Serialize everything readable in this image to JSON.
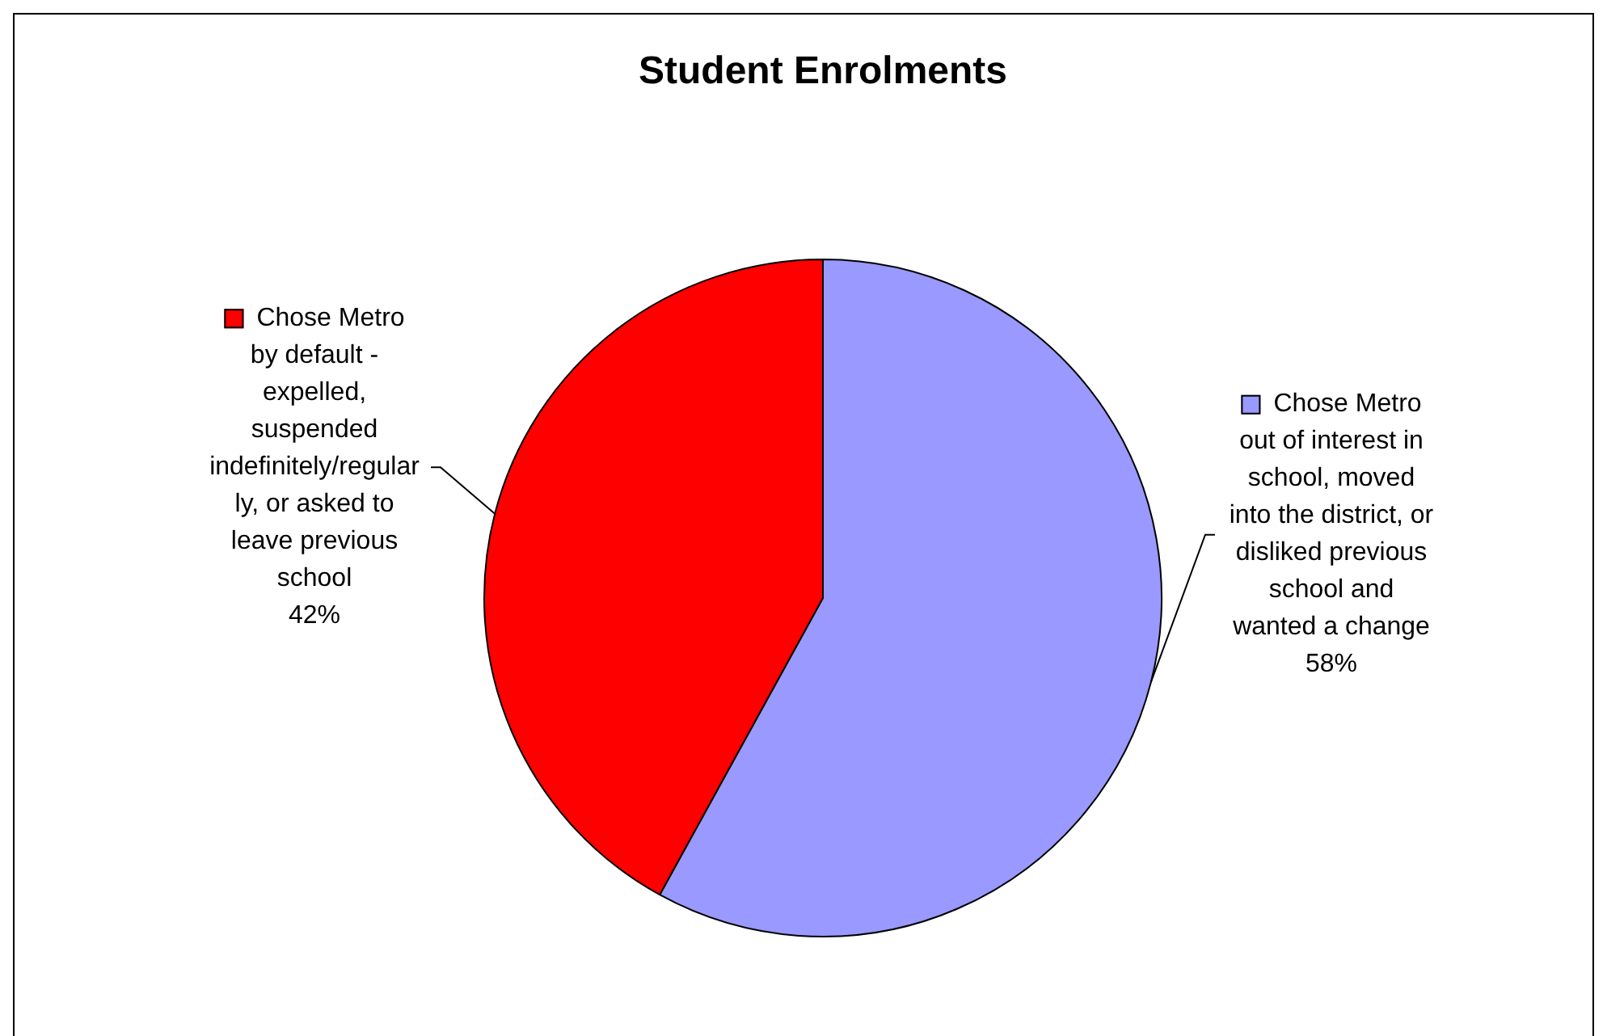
{
  "chart_data": {
    "type": "pie",
    "title": "Student Enrolments",
    "categories": [
      "Chose Metro out of interest in school, moved into the district, or disliked previous school and wanted a change",
      "Chose Metro by default - expelled, suspended indefinitely/regularly, or asked to leave previous school"
    ],
    "values": [
      58,
      42
    ],
    "colors": [
      "#9999ff",
      "#ff0000"
    ],
    "value_labels": [
      "58%",
      "42%"
    ],
    "legend": "left"
  }
}
